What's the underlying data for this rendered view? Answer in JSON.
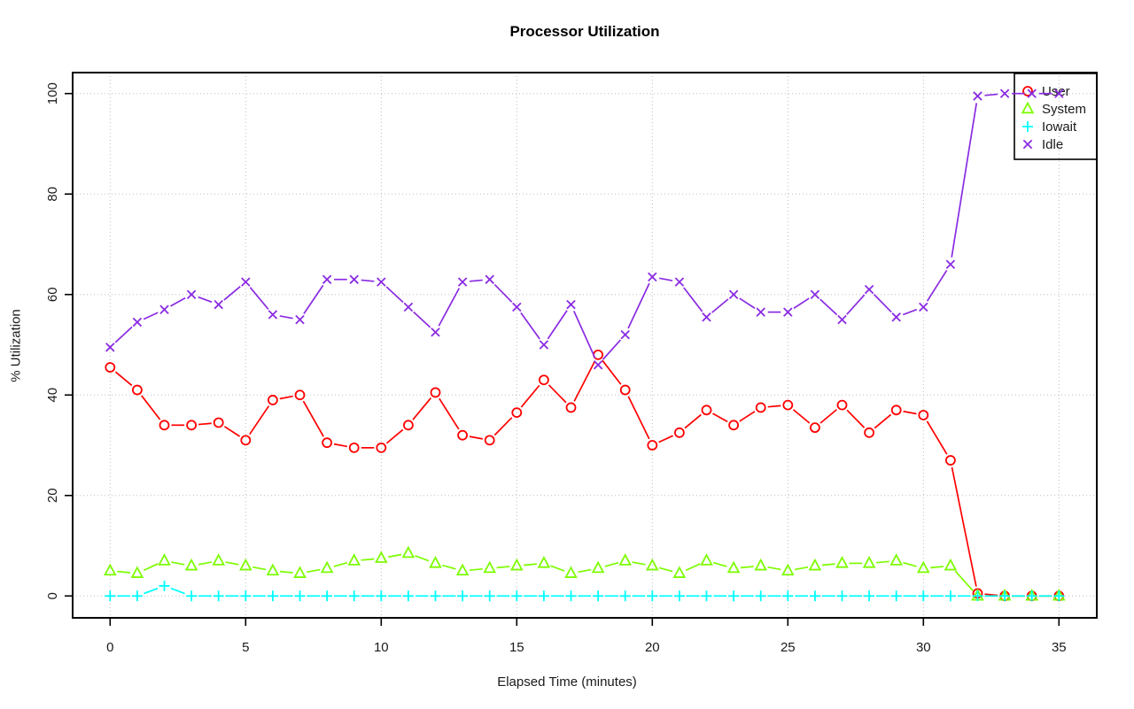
{
  "title": "Processor Utilization",
  "axes": {
    "xlabel": "Elapsed Time (minutes)",
    "ylabel": "% Utilization",
    "xticks": [
      0,
      5,
      10,
      15,
      20,
      25,
      30,
      35
    ],
    "yticks": [
      0,
      20,
      40,
      60,
      80,
      100
    ]
  },
  "colors": {
    "user": "#FF0000",
    "system": "#7CFC00",
    "iowait": "#00FFFF",
    "idle": "#8A2BE2",
    "grid": "#BDBDBD",
    "axis": "#000000",
    "tick_text": "#1a1a1a"
  },
  "chart_data": {
    "type": "line",
    "title": "Processor Utilization",
    "xlabel": "Elapsed Time (minutes)",
    "ylabel": "% Utilization",
    "xlim": [
      0,
      35
    ],
    "ylim": [
      0,
      100
    ],
    "grid": true,
    "legend_position": "top-right",
    "x": [
      0,
      1,
      2,
      3,
      4,
      5,
      6,
      7,
      8,
      9,
      10,
      11,
      12,
      13,
      14,
      15,
      16,
      17,
      18,
      19,
      20,
      21,
      22,
      23,
      24,
      25,
      26,
      27,
      28,
      29,
      30,
      31,
      32,
      33,
      34,
      35
    ],
    "series": [
      {
        "name": "User",
        "color": "#FF0000",
        "marker": "circle",
        "values": [
          45.5,
          41,
          34,
          34,
          34.5,
          31,
          39,
          40,
          30.5,
          29.5,
          29.5,
          34,
          40.5,
          32,
          31,
          36.5,
          43,
          37.5,
          48,
          41,
          30,
          32.5,
          37,
          34,
          37.5,
          38,
          33.5,
          38,
          32.5,
          37,
          36,
          27,
          0.5,
          0,
          0,
          0
        ]
      },
      {
        "name": "System",
        "color": "#7CFC00",
        "marker": "triangle",
        "values": [
          5,
          4.5,
          7,
          6,
          7,
          6,
          5,
          4.5,
          5.5,
          7,
          7.5,
          8.5,
          6.5,
          5,
          5.5,
          6,
          6.5,
          4.5,
          5.5,
          7,
          6,
          4.5,
          7,
          5.5,
          6,
          5,
          6,
          6.5,
          6.5,
          7,
          5.5,
          6,
          0,
          0,
          0,
          0
        ]
      },
      {
        "name": "Iowait",
        "color": "#00FFFF",
        "marker": "plus",
        "values": [
          0,
          0,
          2,
          0,
          0,
          0,
          0,
          0,
          0,
          0,
          0,
          0,
          0,
          0,
          0,
          0,
          0,
          0,
          0,
          0,
          0,
          0,
          0,
          0,
          0,
          0,
          0,
          0,
          0,
          0,
          0,
          0,
          0,
          0,
          0,
          0
        ]
      },
      {
        "name": "Idle",
        "color": "#8A2BE2",
        "marker": "x",
        "values": [
          49.5,
          54.5,
          57,
          60,
          58,
          62.5,
          56,
          55,
          63,
          63,
          62.5,
          57.5,
          52.5,
          62.5,
          63,
          57.5,
          50,
          58,
          46,
          52,
          63.5,
          62.5,
          55.5,
          60,
          56.5,
          56.5,
          60,
          55,
          61,
          55.5,
          57.5,
          66,
          99.5,
          100,
          100,
          100
        ]
      }
    ]
  }
}
